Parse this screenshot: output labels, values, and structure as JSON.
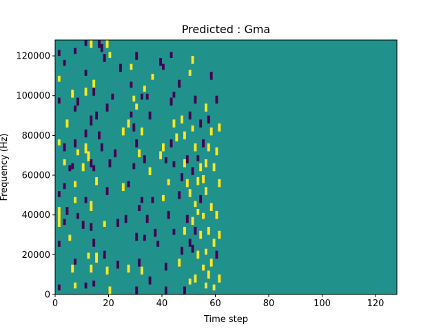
{
  "chart_data": {
    "type": "heatmap",
    "title": "Predicted : Gma",
    "xlabel": "Time step",
    "ylabel": "Frequency (Hz)",
    "xlim": [
      0,
      128
    ],
    "ylim": [
      0,
      128000
    ],
    "xticks": [
      0,
      20,
      40,
      60,
      80,
      100,
      120
    ],
    "yticks": [
      0,
      20000,
      40000,
      60000,
      80000,
      100000,
      120000
    ],
    "colormap": "viridis",
    "colors": {
      "low": "#440154",
      "mid": "#21918c",
      "high": "#fde725"
    },
    "background_value": "mid",
    "n_freq_bins": 128,
    "bin_height_hz": 1000,
    "note_cells": "cells list [time_step, freq_start_Hz, freq_end_Hz, level]",
    "cells": [
      [
        1,
        120000,
        123000,
        "low"
      ],
      [
        1,
        107000,
        110000,
        "high"
      ],
      [
        1,
        96000,
        99000,
        "low"
      ],
      [
        1,
        75000,
        78000,
        "high"
      ],
      [
        1,
        49000,
        52000,
        "low"
      ],
      [
        1,
        40000,
        44000,
        "high"
      ],
      [
        1,
        34000,
        42000,
        "high"
      ],
      [
        1,
        24000,
        27000,
        "low"
      ],
      [
        1,
        2000,
        5000,
        "low"
      ],
      [
        3,
        115000,
        118000,
        "low"
      ],
      [
        3,
        72000,
        76000,
        "low"
      ],
      [
        3,
        65000,
        68000,
        "high"
      ],
      [
        3,
        53000,
        56000,
        "low"
      ],
      [
        3,
        35000,
        38000,
        "low"
      ],
      [
        4,
        84000,
        88000,
        "high"
      ],
      [
        4,
        40000,
        44000,
        "low"
      ],
      [
        5,
        62000,
        65000,
        "low"
      ],
      [
        5,
        27000,
        30000,
        "high"
      ],
      [
        6,
        99000,
        103000,
        "high"
      ],
      [
        6,
        63000,
        66000,
        "low"
      ],
      [
        6,
        11000,
        15000,
        "high"
      ],
      [
        7,
        121000,
        124000,
        "low"
      ],
      [
        7,
        92000,
        95000,
        "low"
      ],
      [
        7,
        74000,
        78000,
        "low"
      ],
      [
        7,
        54000,
        57000,
        "high"
      ],
      [
        7,
        46000,
        49000,
        "high"
      ],
      [
        7,
        15000,
        18000,
        "low"
      ],
      [
        7,
        3000,
        6000,
        "high"
      ],
      [
        8,
        95000,
        99000,
        "low"
      ],
      [
        8,
        70000,
        73000,
        "high"
      ],
      [
        8,
        38000,
        41000,
        "low"
      ],
      [
        10,
        62000,
        66000,
        "high"
      ],
      [
        10,
        33000,
        37000,
        "low"
      ],
      [
        11,
        125000,
        128000,
        "low"
      ],
      [
        11,
        110000,
        113000,
        "low"
      ],
      [
        11,
        100000,
        104000,
        "high"
      ],
      [
        11,
        79000,
        83000,
        "low"
      ],
      [
        11,
        71000,
        76000,
        "high"
      ],
      [
        11,
        46000,
        49000,
        "low"
      ],
      [
        11,
        3000,
        6000,
        "low"
      ],
      [
        12,
        67000,
        72000,
        "high"
      ],
      [
        12,
        18000,
        21000,
        "high"
      ],
      [
        13,
        124000,
        128000,
        "high"
      ],
      [
        13,
        85000,
        90000,
        "low"
      ],
      [
        13,
        64000,
        68000,
        "low"
      ],
      [
        13,
        42000,
        47000,
        "high"
      ],
      [
        13,
        32000,
        36000,
        "low"
      ],
      [
        13,
        11000,
        15000,
        "high"
      ],
      [
        14,
        104000,
        108000,
        "high"
      ],
      [
        14,
        62000,
        65000,
        "low"
      ],
      [
        14,
        4000,
        7000,
        "low"
      ],
      [
        14,
        100000,
        104000,
        "low"
      ],
      [
        14,
        24000,
        28000,
        "low"
      ],
      [
        15,
        88000,
        92000,
        "low"
      ],
      [
        15,
        55000,
        59000,
        "high"
      ],
      [
        15,
        16000,
        21000,
        "high"
      ],
      [
        16,
        124000,
        128000,
        "low"
      ],
      [
        16,
        78000,
        82000,
        "low"
      ],
      [
        17,
        122000,
        126000,
        "low"
      ],
      [
        17,
        72000,
        76000,
        "low"
      ],
      [
        18,
        117000,
        121000,
        "low"
      ],
      [
        18,
        34000,
        37000,
        "high"
      ],
      [
        18,
        18000,
        22000,
        "low"
      ],
      [
        19,
        124000,
        128000,
        "high"
      ],
      [
        19,
        92000,
        96000,
        "low"
      ],
      [
        19,
        50000,
        54000,
        "low"
      ],
      [
        19,
        10000,
        14000,
        "high"
      ],
      [
        20,
        119000,
        122000,
        "high"
      ],
      [
        20,
        0,
        4000,
        "high"
      ],
      [
        20,
        64000,
        68000,
        "low"
      ],
      [
        21,
        98000,
        101000,
        "low"
      ],
      [
        22,
        69000,
        73000,
        "low"
      ],
      [
        23,
        34000,
        38000,
        "low"
      ],
      [
        23,
        13000,
        17000,
        "low"
      ],
      [
        24,
        112000,
        116000,
        "low"
      ],
      [
        25,
        80000,
        84000,
        "high"
      ],
      [
        25,
        52000,
        56000,
        "high"
      ],
      [
        26,
        36000,
        40000,
        "low"
      ],
      [
        27,
        84000,
        88000,
        "high"
      ],
      [
        27,
        54000,
        57000,
        "low"
      ],
      [
        27,
        11000,
        15000,
        "high"
      ],
      [
        28,
        113000,
        116000,
        "high"
      ],
      [
        28,
        104000,
        107000,
        "low"
      ],
      [
        28,
        89000,
        92000,
        "low"
      ],
      [
        29,
        97000,
        100000,
        "high"
      ],
      [
        29,
        82000,
        86000,
        "low"
      ],
      [
        29,
        63000,
        66000,
        "low"
      ],
      [
        30,
        118000,
        122000,
        "low"
      ],
      [
        30,
        93000,
        96000,
        "high"
      ],
      [
        30,
        74000,
        78000,
        "low"
      ],
      [
        30,
        0,
        4000,
        "low"
      ],
      [
        30,
        27000,
        31000,
        "low"
      ],
      [
        31,
        69000,
        73000,
        "high"
      ],
      [
        31,
        42000,
        45000,
        "low"
      ],
      [
        31,
        14000,
        18000,
        "low"
      ],
      [
        32,
        98000,
        101000,
        "low"
      ],
      [
        32,
        80000,
        84000,
        "high"
      ],
      [
        32,
        46000,
        49000,
        "low"
      ],
      [
        32,
        10000,
        14000,
        "high"
      ],
      [
        33,
        102000,
        105000,
        "high"
      ],
      [
        33,
        66000,
        70000,
        "low"
      ],
      [
        33,
        27000,
        30000,
        "low"
      ],
      [
        34,
        98000,
        101000,
        "low"
      ],
      [
        34,
        36000,
        40000,
        "low"
      ],
      [
        35,
        88000,
        92000,
        "low"
      ],
      [
        35,
        60000,
        64000,
        "high"
      ],
      [
        35,
        5000,
        9000,
        "low"
      ],
      [
        36,
        108000,
        111000,
        "high"
      ],
      [
        36,
        46000,
        49000,
        "low"
      ],
      [
        37,
        29000,
        33000,
        "low"
      ],
      [
        38,
        24000,
        27000,
        "low"
      ],
      [
        39,
        115000,
        119000,
        "low"
      ],
      [
        39,
        68000,
        72000,
        "high"
      ],
      [
        40,
        72000,
        76000,
        "high"
      ],
      [
        40,
        47000,
        50000,
        "high"
      ],
      [
        40,
        113000,
        116000,
        "low"
      ],
      [
        41,
        66000,
        69000,
        "low"
      ],
      [
        41,
        0,
        4000,
        "low"
      ],
      [
        41,
        12000,
        16000,
        "low"
      ],
      [
        42,
        55000,
        58000,
        "high"
      ],
      [
        42,
        38000,
        42000,
        "low"
      ],
      [
        43,
        119000,
        122000,
        "low"
      ],
      [
        43,
        95000,
        99000,
        "low"
      ],
      [
        43,
        74000,
        78000,
        "low"
      ],
      [
        44,
        99000,
        102000,
        "low"
      ],
      [
        44,
        84000,
        88000,
        "high"
      ],
      [
        44,
        64000,
        67000,
        "low"
      ],
      [
        44,
        30000,
        33000,
        "low"
      ],
      [
        45,
        77000,
        81000,
        "high"
      ],
      [
        46,
        104000,
        108000,
        "low"
      ],
      [
        46,
        48000,
        52000,
        "low"
      ],
      [
        46,
        14000,
        18000,
        "high"
      ],
      [
        47,
        86000,
        90000,
        "high"
      ],
      [
        47,
        57000,
        61000,
        "low"
      ],
      [
        47,
        20000,
        24000,
        "low"
      ],
      [
        48,
        78000,
        82000,
        "high"
      ],
      [
        48,
        64000,
        68000,
        "high"
      ],
      [
        48,
        30000,
        34000,
        "high"
      ],
      [
        48,
        0,
        4000,
        "low"
      ],
      [
        49,
        66000,
        70000,
        "low"
      ],
      [
        49,
        54000,
        58000,
        "high"
      ],
      [
        49,
        36000,
        40000,
        "low"
      ],
      [
        50,
        110000,
        113000,
        "high"
      ],
      [
        50,
        88000,
        92000,
        "low"
      ],
      [
        50,
        49000,
        53000,
        "high"
      ],
      [
        50,
        5000,
        8000,
        "high"
      ],
      [
        50,
        24000,
        28000,
        "low"
      ],
      [
        51,
        116000,
        120000,
        "high"
      ],
      [
        51,
        82000,
        85000,
        "high"
      ],
      [
        51,
        60000,
        64000,
        "low"
      ],
      [
        51,
        21000,
        25000,
        "low"
      ],
      [
        51,
        35000,
        39000,
        "high"
      ],
      [
        52,
        96000,
        100000,
        "low"
      ],
      [
        52,
        72000,
        76000,
        "high"
      ],
      [
        52,
        44000,
        47000,
        "high"
      ],
      [
        52,
        6000,
        10000,
        "high"
      ],
      [
        52,
        30000,
        34000,
        "low"
      ],
      [
        53,
        67000,
        70000,
        "low"
      ],
      [
        53,
        55000,
        59000,
        "high"
      ],
      [
        53,
        40000,
        43000,
        "high"
      ],
      [
        53,
        18000,
        22000,
        "high"
      ],
      [
        54,
        84000,
        88000,
        "low"
      ],
      [
        54,
        62000,
        66000,
        "high"
      ],
      [
        54,
        46000,
        50000,
        "low"
      ],
      [
        54,
        28000,
        32000,
        "high"
      ],
      [
        55,
        74000,
        78000,
        "low"
      ],
      [
        55,
        56000,
        60000,
        "high"
      ],
      [
        55,
        38000,
        41000,
        "high"
      ],
      [
        55,
        12000,
        15000,
        "high"
      ],
      [
        56,
        92000,
        96000,
        "high"
      ],
      [
        56,
        64000,
        68000,
        "high"
      ],
      [
        56,
        50000,
        54000,
        "high"
      ],
      [
        56,
        20000,
        23000,
        "high"
      ],
      [
        56,
        3000,
        6000,
        "high"
      ],
      [
        57,
        86000,
        90000,
        "low"
      ],
      [
        57,
        72000,
        76000,
        "high"
      ],
      [
        57,
        30000,
        34000,
        "high"
      ],
      [
        57,
        8000,
        12000,
        "high"
      ],
      [
        58,
        108000,
        112000,
        "low"
      ],
      [
        58,
        80000,
        84000,
        "high"
      ],
      [
        58,
        42000,
        46000,
        "high"
      ],
      [
        58,
        14000,
        18000,
        "high"
      ],
      [
        59,
        62000,
        66000,
        "high"
      ],
      [
        59,
        24000,
        28000,
        "high"
      ],
      [
        59,
        2000,
        5000,
        "high"
      ],
      [
        60,
        96000,
        100000,
        "low"
      ],
      [
        60,
        70000,
        74000,
        "high"
      ],
      [
        60,
        38000,
        42000,
        "high"
      ],
      [
        60,
        18000,
        22000,
        "low"
      ],
      [
        61,
        82000,
        86000,
        "high"
      ],
      [
        61,
        54000,
        58000,
        "high"
      ],
      [
        61,
        28000,
        32000,
        "high"
      ],
      [
        61,
        6000,
        10000,
        "high"
      ]
    ]
  }
}
